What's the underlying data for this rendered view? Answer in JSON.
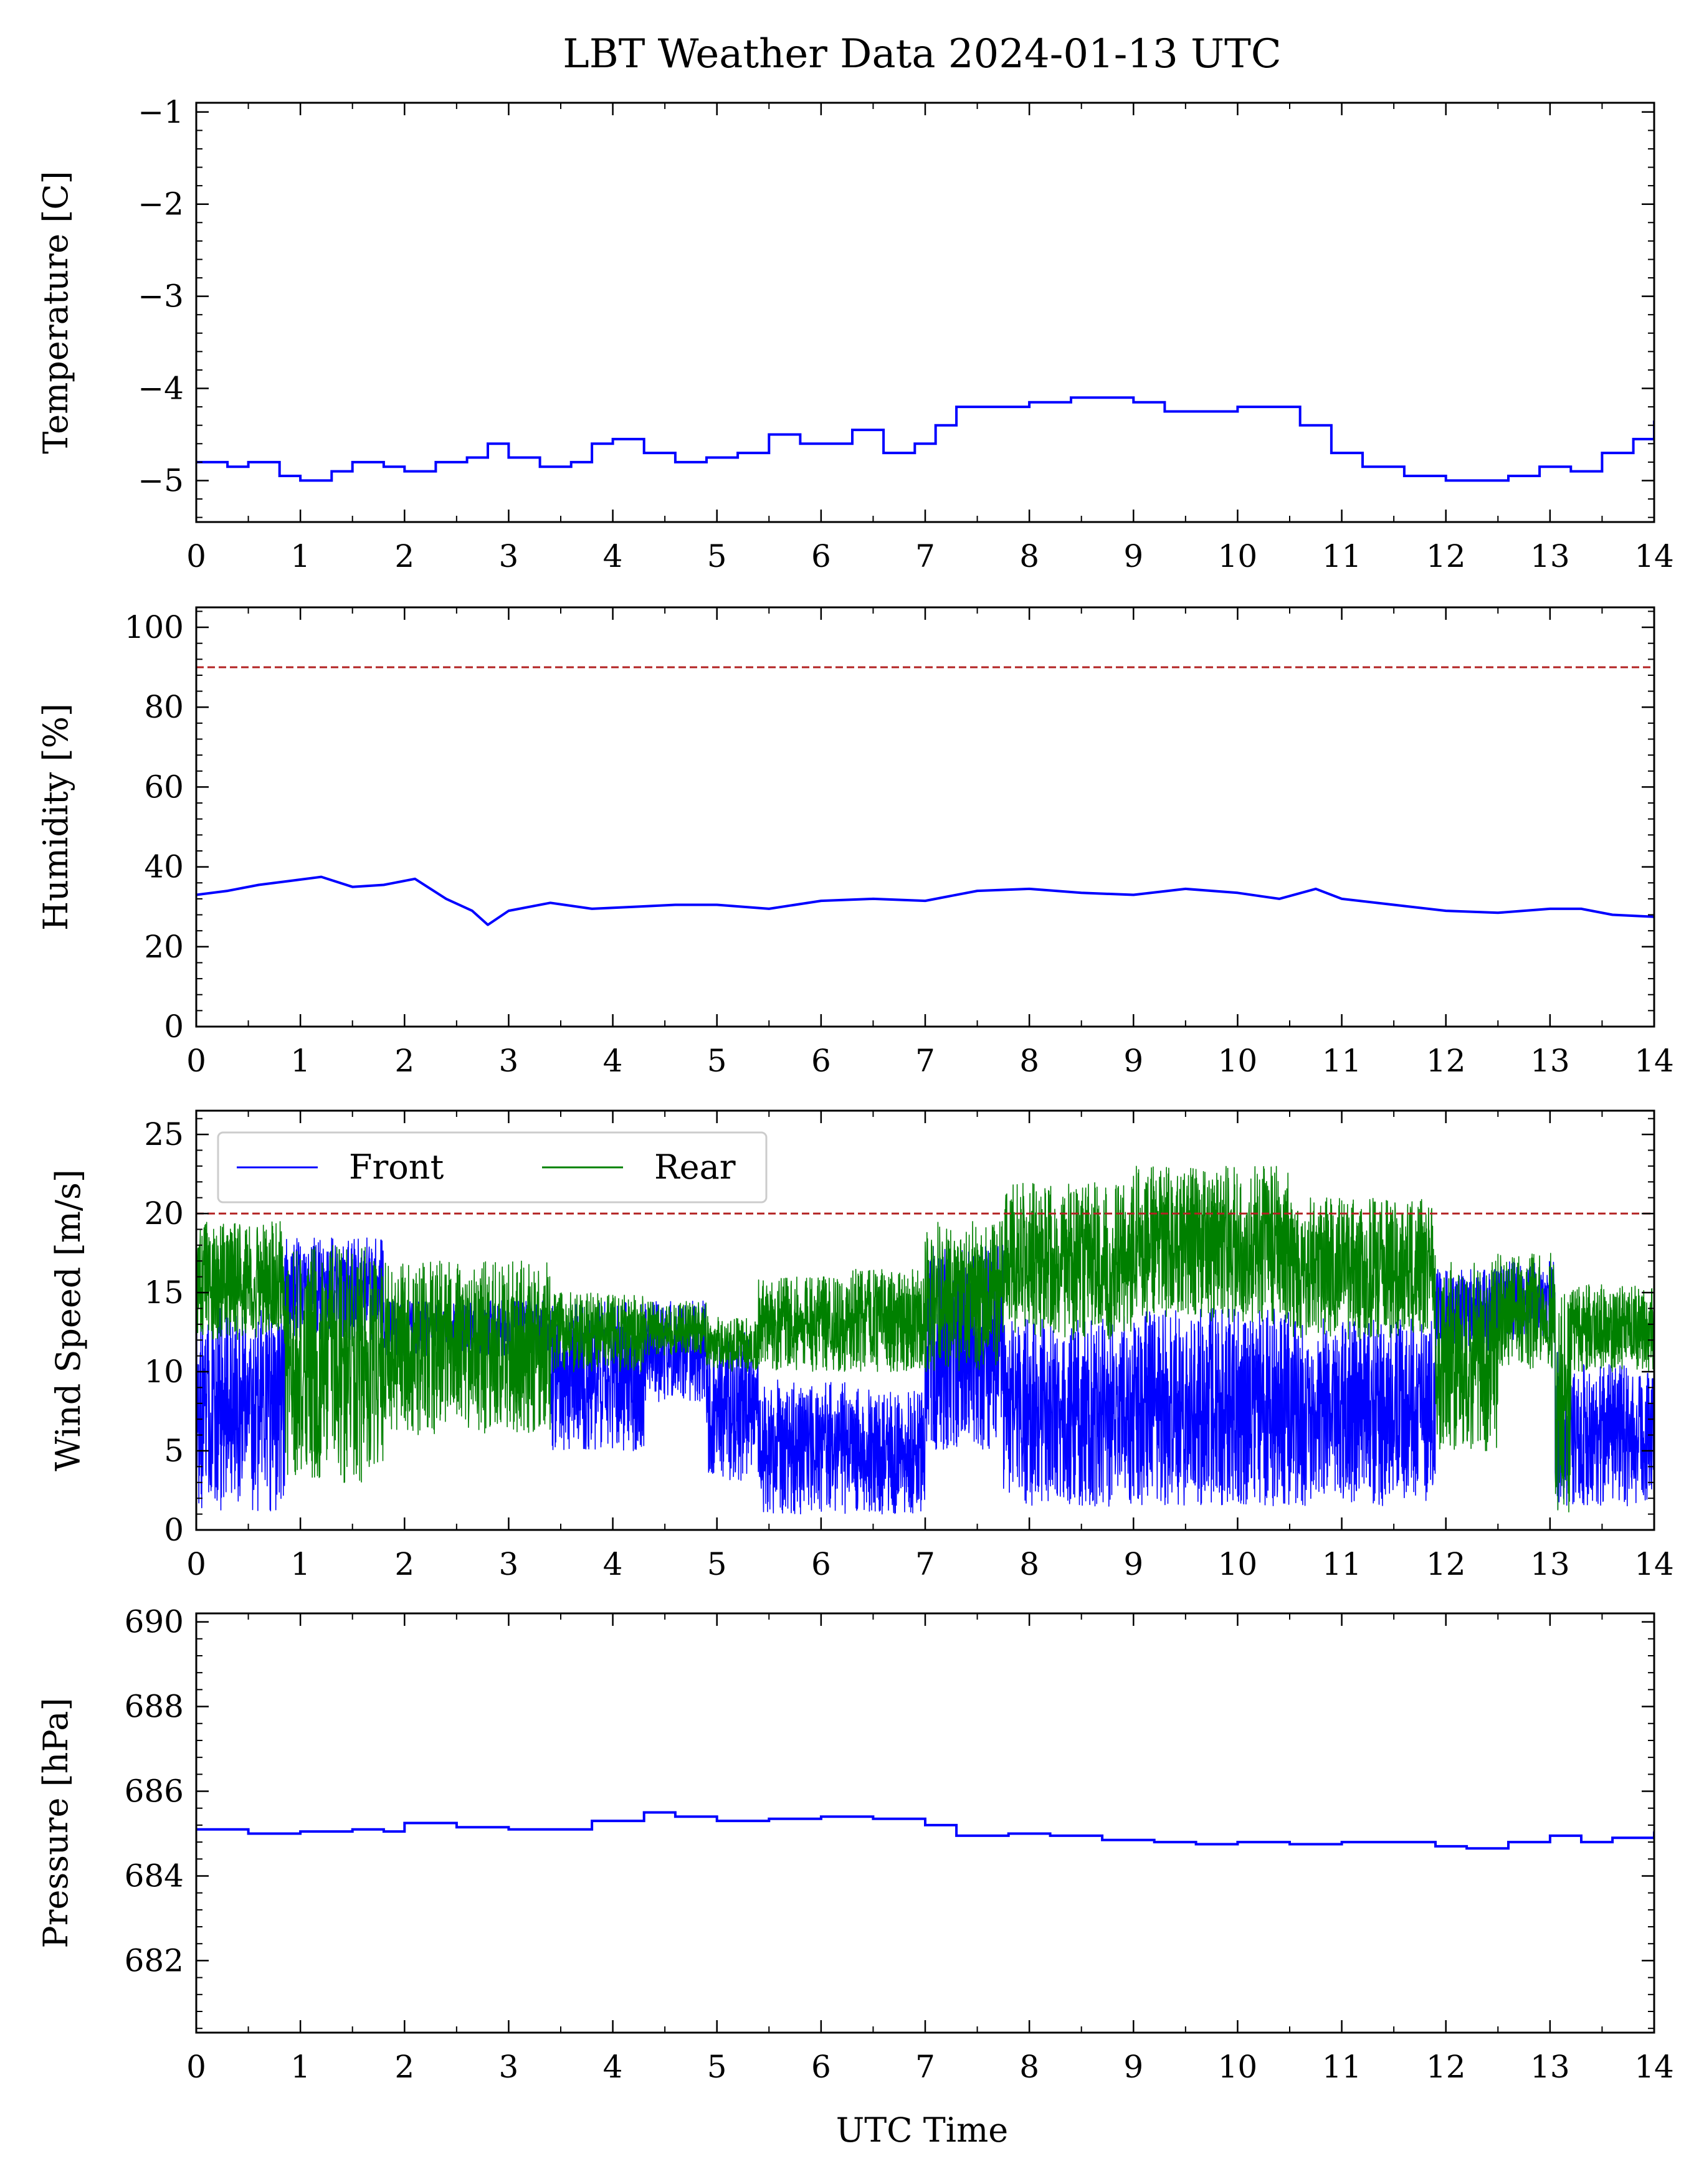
{
  "figure": {
    "title": "LBT Weather Data 2024-01-13 UTC",
    "xlabel": "UTC Time"
  },
  "chart_data": [
    {
      "type": "line",
      "ylabel": "Temperature [C]",
      "xlim": [
        0,
        14
      ],
      "ylim": [
        -5.45,
        -0.9
      ],
      "x_ticks": [
        0,
        1,
        2,
        3,
        4,
        5,
        6,
        7,
        8,
        9,
        10,
        11,
        12,
        13,
        14
      ],
      "y_ticks": [
        -5,
        -4,
        -3,
        -2,
        -1
      ],
      "y_tick_labels": [
        "−5",
        "−4",
        "−3",
        "−2",
        "−1"
      ],
      "threshold": null,
      "series": [
        {
          "color": "#0000ff",
          "style": "step",
          "points": [
            [
              0,
              -4.8
            ],
            [
              0.3,
              -4.85
            ],
            [
              0.5,
              -4.8
            ],
            [
              0.8,
              -4.95
            ],
            [
              1.0,
              -5.0
            ],
            [
              1.3,
              -4.9
            ],
            [
              1.5,
              -4.8
            ],
            [
              1.8,
              -4.85
            ],
            [
              2.0,
              -4.9
            ],
            [
              2.3,
              -4.8
            ],
            [
              2.6,
              -4.75
            ],
            [
              2.8,
              -4.6
            ],
            [
              3.0,
              -4.75
            ],
            [
              3.3,
              -4.85
            ],
            [
              3.6,
              -4.8
            ],
            [
              3.8,
              -4.6
            ],
            [
              4.0,
              -4.55
            ],
            [
              4.3,
              -4.7
            ],
            [
              4.6,
              -4.8
            ],
            [
              4.9,
              -4.75
            ],
            [
              5.2,
              -4.7
            ],
            [
              5.5,
              -4.5
            ],
            [
              5.8,
              -4.6
            ],
            [
              6.0,
              -4.6
            ],
            [
              6.3,
              -4.45
            ],
            [
              6.6,
              -4.7
            ],
            [
              6.9,
              -4.6
            ],
            [
              7.1,
              -4.4
            ],
            [
              7.3,
              -4.2
            ],
            [
              7.6,
              -4.2
            ],
            [
              8.0,
              -4.15
            ],
            [
              8.4,
              -4.1
            ],
            [
              8.8,
              -4.1
            ],
            [
              9.0,
              -4.15
            ],
            [
              9.3,
              -4.25
            ],
            [
              9.6,
              -4.25
            ],
            [
              10.0,
              -4.2
            ],
            [
              10.3,
              -4.2
            ],
            [
              10.6,
              -4.4
            ],
            [
              10.9,
              -4.7
            ],
            [
              11.2,
              -4.85
            ],
            [
              11.6,
              -4.95
            ],
            [
              12.0,
              -5.0
            ],
            [
              12.3,
              -5.0
            ],
            [
              12.6,
              -4.95
            ],
            [
              12.9,
              -4.85
            ],
            [
              13.2,
              -4.9
            ],
            [
              13.5,
              -4.7
            ],
            [
              13.8,
              -4.55
            ],
            [
              14.0,
              -4.35
            ]
          ]
        }
      ]
    },
    {
      "type": "line",
      "ylabel": "Humidity [%]",
      "xlim": [
        0,
        14
      ],
      "ylim": [
        0,
        105
      ],
      "x_ticks": [
        0,
        1,
        2,
        3,
        4,
        5,
        6,
        7,
        8,
        9,
        10,
        11,
        12,
        13,
        14
      ],
      "y_ticks": [
        0,
        20,
        40,
        60,
        80,
        100
      ],
      "y_tick_labels": [
        "0",
        "20",
        "40",
        "60",
        "80",
        "100"
      ],
      "threshold": 90,
      "series": [
        {
          "color": "#0000ff",
          "style": "line",
          "points": [
            [
              0,
              33
            ],
            [
              0.3,
              34
            ],
            [
              0.6,
              35.5
            ],
            [
              0.9,
              36.5
            ],
            [
              1.2,
              37.5
            ],
            [
              1.5,
              35
            ],
            [
              1.8,
              35.5
            ],
            [
              2.1,
              37
            ],
            [
              2.4,
              32
            ],
            [
              2.65,
              29
            ],
            [
              2.8,
              25.5
            ],
            [
              3.0,
              29
            ],
            [
              3.4,
              31
            ],
            [
              3.8,
              29.5
            ],
            [
              4.2,
              30
            ],
            [
              4.6,
              30.5
            ],
            [
              5.0,
              30.5
            ],
            [
              5.5,
              29.5
            ],
            [
              6.0,
              31.5
            ],
            [
              6.5,
              32
            ],
            [
              7.0,
              31.5
            ],
            [
              7.5,
              34
            ],
            [
              8.0,
              34.5
            ],
            [
              8.5,
              33.5
            ],
            [
              9.0,
              33
            ],
            [
              9.5,
              34.5
            ],
            [
              10.0,
              33.5
            ],
            [
              10.4,
              32
            ],
            [
              10.75,
              34.5
            ],
            [
              11.0,
              32
            ],
            [
              11.5,
              30.5
            ],
            [
              12.0,
              29
            ],
            [
              12.5,
              28.5
            ],
            [
              13.0,
              29.5
            ],
            [
              13.3,
              29.5
            ],
            [
              13.6,
              28
            ],
            [
              14.0,
              27.5
            ]
          ]
        }
      ]
    },
    {
      "type": "line",
      "ylabel": "Wind Speed [m/s]",
      "xlim": [
        0,
        14
      ],
      "ylim": [
        0,
        26.5
      ],
      "x_ticks": [
        0,
        1,
        2,
        3,
        4,
        5,
        6,
        7,
        8,
        9,
        10,
        11,
        12,
        13,
        14
      ],
      "y_ticks": [
        0,
        5,
        10,
        15,
        20,
        25
      ],
      "y_tick_labels": [
        "0",
        "5",
        "10",
        "15",
        "20",
        "25"
      ],
      "threshold": 20,
      "legend": {
        "position": "upper-left",
        "columns": 2
      },
      "series": [
        {
          "name": "Front",
          "color": "#0000ff",
          "segments": [
            [
              0.0,
              0.85,
              1.0,
              14.0
            ],
            [
              0.85,
              1.8,
              12.0,
              18.5
            ],
            [
              1.8,
              3.4,
              11.0,
              14.5
            ],
            [
              3.4,
              4.3,
              5.0,
              14.5
            ],
            [
              4.3,
              4.9,
              8.0,
              14.5
            ],
            [
              4.9,
              5.4,
              3.0,
              12.5
            ],
            [
              5.4,
              6.3,
              1.0,
              9.5
            ],
            [
              6.3,
              7.0,
              1.0,
              9.0
            ],
            [
              7.0,
              7.75,
              5.0,
              18.0
            ],
            [
              7.75,
              9.0,
              1.5,
              13.5
            ],
            [
              9.0,
              10.5,
              1.5,
              14.0
            ],
            [
              10.5,
              11.9,
              1.5,
              13.5
            ],
            [
              11.9,
              12.5,
              11.0,
              16.5
            ],
            [
              12.5,
              13.05,
              12.0,
              17.0
            ],
            [
              13.05,
              13.2,
              1.0,
              11.5
            ],
            [
              13.2,
              14.0,
              1.5,
              10.5
            ]
          ]
        },
        {
          "name": "Rear",
          "color": "#008000",
          "segments": [
            [
              0.0,
              0.85,
              12.0,
              19.5
            ],
            [
              0.85,
              1.8,
              3.0,
              18.0
            ],
            [
              1.8,
              3.4,
              6.0,
              17.0
            ],
            [
              3.4,
              4.3,
              10.0,
              15.0
            ],
            [
              4.3,
              4.9,
              11.0,
              14.5
            ],
            [
              4.9,
              5.4,
              10.0,
              13.5
            ],
            [
              5.4,
              6.3,
              10.0,
              16.0
            ],
            [
              6.3,
              7.0,
              10.0,
              16.5
            ],
            [
              7.0,
              7.75,
              10.0,
              19.5
            ],
            [
              7.75,
              9.0,
              12.0,
              22.0
            ],
            [
              9.0,
              10.5,
              13.0,
              23.0
            ],
            [
              10.5,
              11.9,
              12.0,
              21.0
            ],
            [
              11.9,
              12.5,
              5.0,
              17.0
            ],
            [
              12.5,
              13.05,
              10.0,
              17.5
            ],
            [
              13.05,
              13.2,
              1.0,
              15.0
            ],
            [
              13.2,
              14.0,
              10.0,
              15.5
            ]
          ]
        }
      ]
    },
    {
      "type": "line",
      "ylabel": "Pressure [hPa]",
      "xlim": [
        0,
        14
      ],
      "ylim": [
        680.3,
        690.2
      ],
      "x_ticks": [
        0,
        1,
        2,
        3,
        4,
        5,
        6,
        7,
        8,
        9,
        10,
        11,
        12,
        13,
        14
      ],
      "y_ticks": [
        682,
        684,
        686,
        688,
        690
      ],
      "y_tick_labels": [
        "682",
        "684",
        "686",
        "688",
        "690"
      ],
      "threshold": null,
      "series": [
        {
          "color": "#0000ff",
          "style": "step",
          "points": [
            [
              0,
              685.1
            ],
            [
              0.5,
              685.0
            ],
            [
              1.0,
              685.05
            ],
            [
              1.5,
              685.1
            ],
            [
              1.8,
              685.05
            ],
            [
              2.0,
              685.25
            ],
            [
              2.5,
              685.15
            ],
            [
              3.0,
              685.1
            ],
            [
              3.5,
              685.1
            ],
            [
              3.8,
              685.3
            ],
            [
              4.3,
              685.5
            ],
            [
              4.6,
              685.4
            ],
            [
              5.0,
              685.3
            ],
            [
              5.5,
              685.35
            ],
            [
              6.0,
              685.4
            ],
            [
              6.5,
              685.35
            ],
            [
              7.0,
              685.2
            ],
            [
              7.3,
              684.95
            ],
            [
              7.8,
              685.0
            ],
            [
              8.2,
              684.95
            ],
            [
              8.7,
              684.85
            ],
            [
              9.2,
              684.8
            ],
            [
              9.6,
              684.75
            ],
            [
              10.0,
              684.8
            ],
            [
              10.5,
              684.75
            ],
            [
              11.0,
              684.8
            ],
            [
              11.5,
              684.8
            ],
            [
              11.9,
              684.7
            ],
            [
              12.2,
              684.65
            ],
            [
              12.6,
              684.8
            ],
            [
              13.0,
              684.95
            ],
            [
              13.3,
              684.8
            ],
            [
              13.6,
              684.9
            ],
            [
              14.0,
              685.05
            ]
          ]
        }
      ]
    }
  ]
}
